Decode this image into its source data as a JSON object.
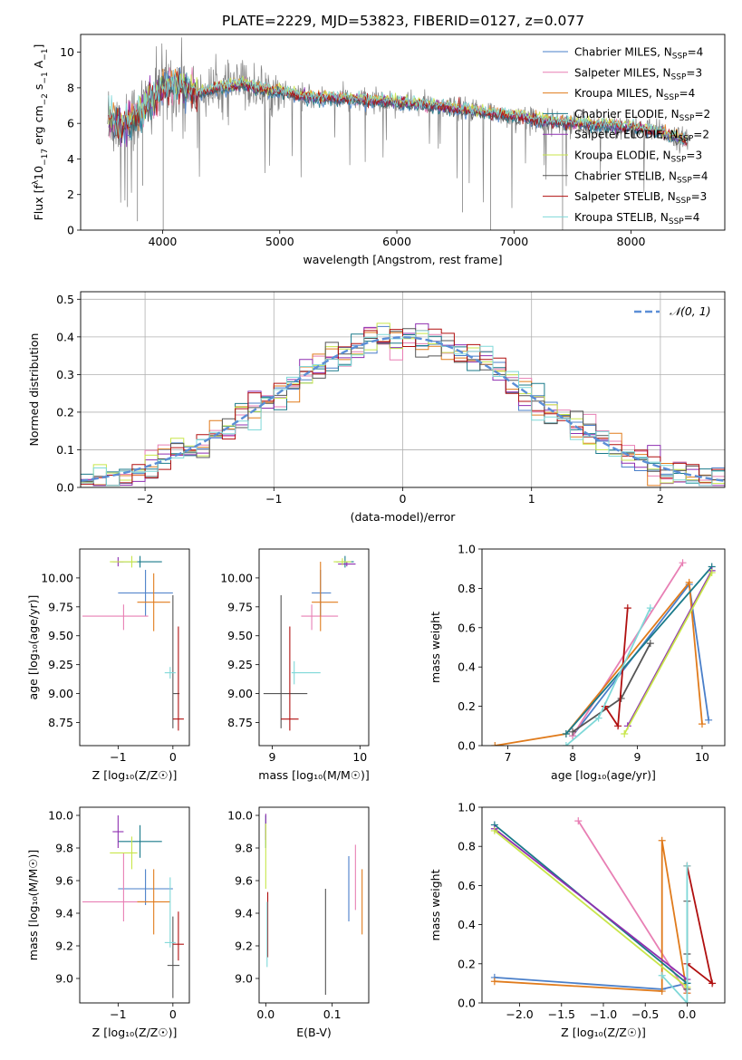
{
  "figure_title": "PLATE=2229, MJD=53823, FIBERID=0127, z=0.077",
  "colors": {
    "series": [
      "#4a7fc9",
      "#e87fb4",
      "#e07b1c",
      "#1a7a8a",
      "#8e2fb0",
      "#c8e64a",
      "#555555",
      "#b00f0f",
      "#7fd8d8"
    ],
    "data": "#808080",
    "normal": "#5b8ed6",
    "grid": "#b0b0b0"
  },
  "legend_spec": [
    {
      "base": "Chabrier MILES, N",
      "sub": "SSP",
      "end": "=4"
    },
    {
      "base": "Salpeter MILES, N",
      "sub": "SSP",
      "end": "=3"
    },
    {
      "base": "Kroupa MILES, N",
      "sub": "SSP",
      "end": "=4"
    },
    {
      "base": "Chabrier ELODIE, N",
      "sub": "SSP",
      "end": "=2"
    },
    {
      "base": "Salpeter ELODIE, N",
      "sub": "SSP",
      "end": "=2"
    },
    {
      "base": "Kroupa ELODIE, N",
      "sub": "SSP",
      "end": "=3"
    },
    {
      "base": "Chabrier STELIB, N",
      "sub": "SSP",
      "end": "=4"
    },
    {
      "base": "Salpeter STELIB, N",
      "sub": "SSP",
      "end": "=3"
    },
    {
      "base": "Kroupa STELIB, N",
      "sub": "SSP",
      "end": "=4"
    }
  ],
  "chart_data": [
    {
      "type": "line",
      "xlabel": "wavelength [Angstrom, rest frame]",
      "ylabel_main": "Flux [f",
      "ylabel_sub": "λ",
      "ylabel_mid": "10",
      "ylabel_sup": "−17",
      "ylabel_end": " erg cm",
      "ylabel_sup2": "−2",
      "ylabel_end2": " s",
      "ylabel_sup3": "−1",
      "ylabel_end3": " A",
      "ylabel_sup4": "−1",
      "ylabel_end4": "]",
      "xlim": [
        3300,
        8800
      ],
      "ylim": [
        0,
        11
      ],
      "xticks": [
        4000,
        5000,
        6000,
        7000,
        8000
      ],
      "yticks": [
        0,
        2,
        4,
        6,
        8,
        10
      ],
      "grid": false,
      "legend_position": "top-right",
      "spectrum_knots": [
        [
          3550,
          6.3
        ],
        [
          3650,
          5.8
        ],
        [
          3750,
          6.3
        ],
        [
          3850,
          7.0
        ],
        [
          3950,
          7.5
        ],
        [
          4000,
          8.0
        ],
        [
          4100,
          8.2
        ],
        [
          4200,
          8.0
        ],
        [
          4300,
          7.7
        ],
        [
          4500,
          8.0
        ],
        [
          4700,
          8.2
        ],
        [
          4860,
          7.9
        ],
        [
          5000,
          7.8
        ],
        [
          5200,
          7.5
        ],
        [
          5500,
          7.4
        ],
        [
          5800,
          7.3
        ],
        [
          6000,
          7.2
        ],
        [
          6300,
          7.0
        ],
        [
          6560,
          6.8
        ],
        [
          6800,
          6.6
        ],
        [
          7000,
          6.4
        ],
        [
          7200,
          6.2
        ],
        [
          7500,
          6.0
        ],
        [
          7800,
          5.9
        ],
        [
          8100,
          5.7
        ],
        [
          8300,
          5.4
        ],
        [
          8500,
          5.0
        ]
      ]
    },
    {
      "type": "histogram",
      "xlabel": "(data-model)/error",
      "ylabel": "Normed distribution",
      "xlim": [
        -2.5,
        2.5
      ],
      "ylim": [
        0,
        0.52
      ],
      "xticks": [
        -2,
        -1,
        0,
        1,
        2
      ],
      "yticks": [
        0.0,
        0.1,
        0.2,
        0.3,
        0.4,
        0.5
      ],
      "grid": true,
      "legend": [
        "𝒩(0, 1)"
      ],
      "legend_position": "top-right",
      "bin_width": 0.1
    },
    {
      "type": "errorbar",
      "xlabel": "Z [log₁₀(Z/Z☉)]",
      "ylabel": "age  [log₁₀(age/yr)]",
      "xlim": [
        -1.7,
        0.3
      ],
      "ylim": [
        8.55,
        10.25
      ],
      "xticks": [
        -1,
        0
      ],
      "yticks": [
        8.75,
        9.0,
        9.25,
        9.5,
        9.75,
        10.0
      ],
      "points": [
        [
          -0.5,
          9.87,
          0.5,
          0.5,
          0.2,
          0.2
        ],
        [
          -0.9,
          9.67,
          0.75,
          0.45,
          0.12,
          0.1
        ],
        [
          -0.35,
          9.79,
          0.3,
          0.3,
          0.25,
          0.25
        ],
        [
          -0.6,
          10.14,
          0.4,
          0.4,
          0.05,
          0.05
        ],
        [
          -1.0,
          10.14,
          0.1,
          0.1,
          0.04,
          0.04
        ],
        [
          -0.75,
          10.14,
          0.4,
          0.1,
          0.05,
          0.05
        ],
        [
          0.0,
          9.0,
          0.0,
          0.12,
          0.3,
          0.85
        ],
        [
          0.1,
          8.78,
          0.1,
          0.1,
          0.1,
          0.8
        ],
        [
          -0.05,
          9.18,
          0.1,
          0.1,
          0.05,
          0.05
        ]
      ]
    },
    {
      "type": "errorbar",
      "xlabel": "mass [log₁₀(M/M☉)]",
      "ylabel": "",
      "xlim": [
        8.85,
        10.1
      ],
      "ylim": [
        8.55,
        10.25
      ],
      "xticks": [
        9,
        10
      ],
      "yticks": [
        8.75,
        9.0,
        9.25,
        9.5,
        9.75,
        10.0
      ],
      "points": [
        [
          9.55,
          9.87,
          0.1,
          0.12,
          0.2,
          0.2
        ],
        [
          9.45,
          9.67,
          0.12,
          0.3,
          0.12,
          0.1
        ],
        [
          9.55,
          9.79,
          0.1,
          0.2,
          0.25,
          0.35
        ],
        [
          9.83,
          10.14,
          0.1,
          0.1,
          0.05,
          0.05
        ],
        [
          9.85,
          10.12,
          0.1,
          0.1,
          0.02,
          0.02
        ],
        [
          9.8,
          10.14,
          0.1,
          0.1,
          0.03,
          0.03
        ],
        [
          9.1,
          9.0,
          0.2,
          0.3,
          0.3,
          0.85
        ],
        [
          9.2,
          8.78,
          0.1,
          0.1,
          0.1,
          0.8
        ],
        [
          9.25,
          9.18,
          0.03,
          0.3,
          0.1,
          0.1
        ]
      ]
    },
    {
      "type": "line",
      "xlabel": "age  [log₁₀(age/yr)]",
      "ylabel": "mass weight",
      "xlim": [
        6.6,
        10.35
      ],
      "ylim": [
        0,
        1
      ],
      "xticks": [
        7,
        8,
        9,
        10
      ],
      "yticks": [
        0.0,
        0.2,
        0.4,
        0.6,
        0.8,
        1.0
      ],
      "series": [
        {
          "points": [
            [
              8.0,
              0.05
            ],
            [
              9.8,
              0.82
            ],
            [
              10.1,
              0.13
            ]
          ]
        },
        {
          "points": [
            [
              8.0,
              0.05
            ],
            [
              9.7,
              0.93
            ]
          ]
        },
        {
          "points": [
            [
              6.8,
              0.0
            ],
            [
              7.9,
              0.06
            ],
            [
              9.8,
              0.83
            ],
            [
              10.0,
              0.11
            ]
          ]
        },
        {
          "points": [
            [
              7.9,
              0.06
            ],
            [
              10.15,
              0.91
            ]
          ]
        },
        {
          "points": [
            [
              8.85,
              0.1
            ],
            [
              10.15,
              0.89
            ]
          ]
        },
        {
          "points": [
            [
              8.8,
              0.06
            ],
            [
              10.15,
              0.88
            ]
          ]
        },
        {
          "points": [
            [
              8.0,
              0.07
            ],
            [
              8.75,
              0.24
            ],
            [
              9.2,
              0.52
            ]
          ]
        },
        {
          "points": [
            [
              8.5,
              0.2
            ],
            [
              8.7,
              0.1
            ],
            [
              8.85,
              0.7
            ]
          ]
        },
        {
          "points": [
            [
              7.9,
              0.0
            ],
            [
              8.4,
              0.14
            ],
            [
              9.2,
              0.7
            ]
          ]
        }
      ]
    },
    {
      "type": "errorbar",
      "xlabel": "Z [log₁₀(Z/Z☉)]",
      "ylabel": "mass [log₁₀(M/M☉)]",
      "xlim": [
        -1.7,
        0.3
      ],
      "ylim": [
        8.85,
        10.05
      ],
      "xticks": [
        -1,
        0
      ],
      "yticks": [
        9.0,
        9.2,
        9.4,
        9.6,
        9.8,
        10.0
      ],
      "points": [
        [
          -0.5,
          9.55,
          0.5,
          0.5,
          0.1,
          0.12
        ],
        [
          -0.9,
          9.47,
          0.75,
          0.45,
          0.12,
          0.3
        ],
        [
          -0.35,
          9.47,
          0.3,
          0.3,
          0.2,
          0.2
        ],
        [
          -0.6,
          9.84,
          0.4,
          0.4,
          0.1,
          0.1
        ],
        [
          -1.0,
          9.9,
          0.1,
          0.1,
          0.1,
          0.1
        ],
        [
          -0.75,
          9.77,
          0.4,
          0.1,
          0.1,
          0.1
        ],
        [
          0.0,
          9.08,
          0.1,
          0.12,
          0.2,
          0.3
        ],
        [
          0.1,
          9.21,
          0.1,
          0.1,
          0.1,
          0.2
        ],
        [
          -0.05,
          9.22,
          0.1,
          0.1,
          0.03,
          0.4
        ]
      ]
    },
    {
      "type": "errorbar",
      "xlabel": "E(B-V)",
      "ylabel": "",
      "xlim": [
        -0.01,
        0.155
      ],
      "ylim": [
        8.85,
        10.05
      ],
      "xticks": [
        0.0,
        0.1
      ],
      "yticks": [
        9.0,
        9.2,
        9.4,
        9.6,
        9.8,
        10.0
      ],
      "points": [
        [
          0.125,
          9.55,
          0,
          0,
          0.2,
          0.2
        ],
        [
          0.135,
          9.62,
          0,
          0,
          0.2,
          0.2
        ],
        [
          0.145,
          9.47,
          0,
          0,
          0.2,
          0.2
        ],
        [
          0.0,
          9.9,
          0,
          0,
          0.1,
          0.1
        ],
        [
          0.0,
          9.93,
          0,
          0,
          0.08,
          0.08
        ],
        [
          0.0,
          9.75,
          0,
          0,
          0.2,
          0.2
        ],
        [
          0.09,
          9.2,
          0,
          0,
          0.3,
          0.35
        ],
        [
          0.003,
          9.33,
          0,
          0,
          0.2,
          0.2
        ],
        [
          0.002,
          9.27,
          0,
          0,
          0.2,
          0.2
        ]
      ]
    },
    {
      "type": "line",
      "xlabel": "Z [log₁₀(Z/Z☉)]",
      "ylabel": "mass weight",
      "xlim": [
        -2.45,
        0.45
      ],
      "ylim": [
        0,
        1
      ],
      "xticks": [
        -2.0,
        -1.5,
        -1.0,
        -0.5,
        0.0
      ],
      "yticks": [
        0.0,
        0.2,
        0.4,
        0.6,
        0.8,
        1.0
      ],
      "series": [
        {
          "points": [
            [
              -2.3,
              0.13
            ],
            [
              -0.3,
              0.07
            ],
            [
              0.0,
              0.1
            ]
          ]
        },
        {
          "points": [
            [
              -1.3,
              0.93
            ],
            [
              0.0,
              0.05
            ]
          ]
        },
        {
          "points": [
            [
              -2.3,
              0.11
            ],
            [
              -0.3,
              0.06
            ],
            [
              -0.3,
              0.83
            ],
            [
              0.0,
              0.05
            ]
          ]
        },
        {
          "points": [
            [
              -2.3,
              0.91
            ],
            [
              0.0,
              0.1
            ]
          ]
        },
        {
          "points": [
            [
              -2.3,
              0.89
            ],
            [
              0.0,
              0.12
            ]
          ]
        },
        {
          "points": [
            [
              -2.3,
              0.88
            ],
            [
              0.0,
              0.08
            ]
          ]
        },
        {
          "points": [
            [
              0.0,
              0.52
            ],
            [
              0.0,
              0.25
            ],
            [
              0.0,
              0.07
            ]
          ]
        },
        {
          "points": [
            [
              0.0,
              0.2
            ],
            [
              0.3,
              0.1
            ],
            [
              0.0,
              0.7
            ]
          ]
        },
        {
          "points": [
            [
              -0.3,
              0.14
            ],
            [
              0.0,
              0.0
            ],
            [
              0.0,
              0.7
            ]
          ]
        }
      ]
    }
  ]
}
